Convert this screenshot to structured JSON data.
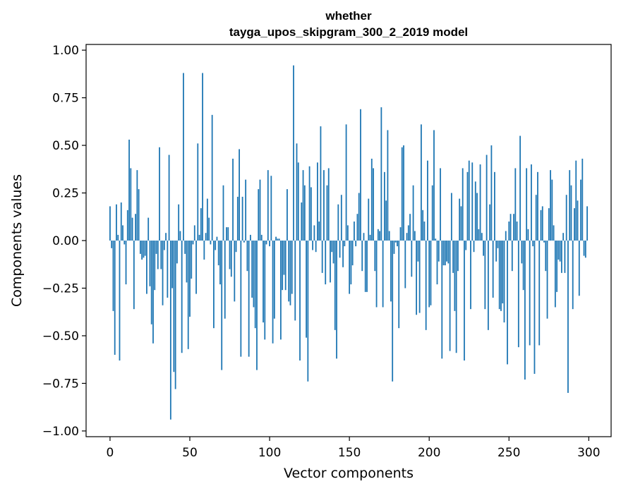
{
  "chart_data": {
    "type": "bar",
    "title": "whether",
    "subtitle": "tayga_upos_skipgram_300_2_2019 model",
    "xlabel": "Vector components",
    "ylabel": "Components values",
    "xlim": [
      -15,
      314
    ],
    "ylim": [
      -1.03,
      1.03
    ],
    "xticks": [
      0,
      50,
      100,
      150,
      200,
      250,
      300
    ],
    "yticks": [
      1.0,
      0.75,
      0.5,
      0.25,
      0.0,
      -0.25,
      -0.5,
      -0.75,
      -1.0
    ],
    "ytick_labels": [
      "1.00",
      "0.75",
      "0.50",
      "0.25",
      "0.00",
      "−0.25",
      "−0.50",
      "−0.75",
      "−1.00"
    ],
    "grid": false,
    "bar_color": "#1f77b4",
    "x": [
      0,
      1,
      2,
      3,
      4,
      5,
      6,
      7,
      8,
      9,
      10,
      11,
      12,
      13,
      14,
      15,
      16,
      17,
      18,
      19,
      20,
      21,
      22,
      23,
      24,
      25,
      26,
      27,
      28,
      29,
      30,
      31,
      32,
      33,
      34,
      35,
      36,
      37,
      38,
      39,
      40,
      41,
      42,
      43,
      44,
      45,
      46,
      47,
      48,
      49,
      50,
      51,
      52,
      53,
      54,
      55,
      56,
      57,
      58,
      59,
      60,
      61,
      62,
      63,
      64,
      65,
      66,
      67,
      68,
      69,
      70,
      71,
      72,
      73,
      74,
      75,
      76,
      77,
      78,
      79,
      80,
      81,
      82,
      83,
      84,
      85,
      86,
      87,
      88,
      89,
      90,
      91,
      92,
      93,
      94,
      95,
      96,
      97,
      98,
      99,
      100,
      101,
      102,
      103,
      104,
      105,
      106,
      107,
      108,
      109,
      110,
      111,
      112,
      113,
      114,
      115,
      116,
      117,
      118,
      119,
      120,
      121,
      122,
      123,
      124,
      125,
      126,
      127,
      128,
      129,
      130,
      131,
      132,
      133,
      134,
      135,
      136,
      137,
      138,
      139,
      140,
      141,
      142,
      143,
      144,
      145,
      146,
      147,
      148,
      149,
      150,
      151,
      152,
      153,
      154,
      155,
      156,
      157,
      158,
      159,
      160,
      161,
      162,
      163,
      164,
      165,
      166,
      167,
      168,
      169,
      170,
      171,
      172,
      173,
      174,
      175,
      176,
      177,
      178,
      179,
      180,
      181,
      182,
      183,
      184,
      185,
      186,
      187,
      188,
      189,
      190,
      191,
      192,
      193,
      194,
      195,
      196,
      197,
      198,
      199,
      200,
      201,
      202,
      203,
      204,
      205,
      206,
      207,
      208,
      209,
      210,
      211,
      212,
      213,
      214,
      215,
      216,
      217,
      218,
      219,
      220,
      221,
      222,
      223,
      224,
      225,
      226,
      227,
      228,
      229,
      230,
      231,
      232,
      233,
      234,
      235,
      236,
      237,
      238,
      239,
      240,
      241,
      242,
      243,
      244,
      245,
      246,
      247,
      248,
      249,
      250,
      251,
      252,
      253,
      254,
      255,
      256,
      257,
      258,
      259,
      260,
      261,
      262,
      263,
      264,
      265,
      266,
      267,
      268,
      269,
      270,
      271,
      272,
      273,
      274,
      275,
      276,
      277,
      278,
      279,
      280,
      281,
      282,
      283,
      284,
      285,
      286,
      287,
      288,
      289,
      290,
      291,
      292,
      293,
      294,
      295,
      296,
      297,
      298,
      299
    ],
    "values": [
      0.18,
      -0.04,
      -0.37,
      -0.6,
      0.19,
      0.03,
      -0.63,
      0.2,
      0.08,
      -0.02,
      -0.23,
      0.16,
      0.53,
      0.38,
      0.12,
      -0.36,
      0.14,
      0.37,
      0.27,
      -0.07,
      -0.1,
      -0.09,
      -0.08,
      -0.28,
      0.12,
      -0.24,
      -0.44,
      -0.54,
      -0.26,
      -0.07,
      -0.15,
      0.49,
      -0.15,
      -0.34,
      -0.05,
      0.04,
      -0.3,
      0.45,
      -0.94,
      -0.25,
      -0.69,
      -0.78,
      -0.12,
      0.19,
      0.05,
      -0.59,
      0.88,
      -0.07,
      -0.22,
      -0.57,
      -0.4,
      -0.2,
      -0.02,
      0.08,
      -0.28,
      0.51,
      0.03,
      0.17,
      0.88,
      -0.1,
      0.04,
      0.22,
      0.12,
      -0.02,
      0.66,
      -0.46,
      -0.05,
      0.02,
      -0.13,
      -0.23,
      -0.68,
      0.29,
      -0.41,
      0.07,
      0.07,
      -0.15,
      -0.19,
      0.43,
      -0.32,
      -0.06,
      0.23,
      0.48,
      -0.61,
      0.23,
      -0.01,
      0.32,
      -0.16,
      -0.61,
      0.03,
      -0.3,
      -0.35,
      -0.46,
      -0.68,
      0.27,
      0.32,
      0.03,
      -0.43,
      -0.52,
      -0.02,
      0.37,
      -0.03,
      0.34,
      -0.54,
      -0.41,
      0.02,
      0.01,
      0.01,
      -0.52,
      -0.26,
      -0.18,
      -0.26,
      0.27,
      -0.32,
      -0.34,
      -0.28,
      0.92,
      -0.42,
      0.51,
      0.41,
      -0.63,
      0.2,
      0.37,
      0.29,
      -0.51,
      -0.74,
      0.39,
      0.28,
      -0.05,
      0.08,
      -0.06,
      0.41,
      0.1,
      0.6,
      -0.17,
      0.37,
      -0.23,
      0.29,
      0.38,
      -0.22,
      -0.06,
      -0.12,
      -0.47,
      -0.62,
      0.19,
      -0.09,
      0.24,
      -0.14,
      -0.03,
      0.61,
      0.08,
      -0.28,
      -0.23,
      -0.13,
      0.1,
      -0.03,
      0.14,
      0.25,
      0.69,
      -0.16,
      0.04,
      -0.27,
      -0.27,
      0.22,
      0.03,
      0.43,
      0.38,
      -0.16,
      -0.35,
      0.06,
      0.05,
      0.7,
      -0.35,
      0.36,
      0.21,
      0.58,
      0.05,
      -0.32,
      -0.74,
      -0.07,
      -0.01,
      -0.03,
      -0.46,
      0.07,
      0.49,
      0.5,
      -0.25,
      0.04,
      0.08,
      0.14,
      -0.19,
      0.29,
      0.05,
      -0.39,
      -0.11,
      -0.38,
      0.61,
      0.16,
      0.1,
      -0.47,
      0.42,
      -0.35,
      -0.34,
      0.29,
      0.58,
      0.01,
      -0.23,
      -0.11,
      0.38,
      -0.62,
      -0.13,
      -0.13,
      -0.11,
      -0.12,
      -0.58,
      0.25,
      -0.17,
      -0.37,
      -0.59,
      -0.16,
      0.22,
      0.18,
      0.38,
      -0.63,
      -0.05,
      0.36,
      0.42,
      -0.36,
      0.41,
      -0.06,
      0.31,
      0.25,
      0.06,
      0.4,
      0.04,
      -0.08,
      -0.36,
      0.45,
      -0.47,
      0.19,
      0.5,
      -0.3,
      0.36,
      -0.11,
      -0.04,
      -0.36,
      -0.37,
      -0.33,
      -0.43,
      0.05,
      -0.65,
      0.1,
      0.14,
      -0.16,
      0.14,
      0.38,
      0.1,
      -0.56,
      0.55,
      -0.12,
      -0.26,
      -0.73,
      0.38,
      0.06,
      -0.55,
      0.4,
      -0.03,
      -0.7,
      0.24,
      0.36,
      -0.55,
      0.16,
      0.18,
      -0.01,
      -0.16,
      -0.41,
      0.17,
      0.37,
      0.32,
      0.08,
      -0.35,
      -0.27,
      -0.1,
      -0.11,
      -0.17,
      0.04,
      -0.17,
      0.24,
      -0.8,
      0.37,
      0.29,
      -0.36,
      0.17,
      0.42,
      0.21,
      -0.29,
      0.32,
      0.43,
      -0.08,
      -0.09,
      0.18
    ]
  }
}
